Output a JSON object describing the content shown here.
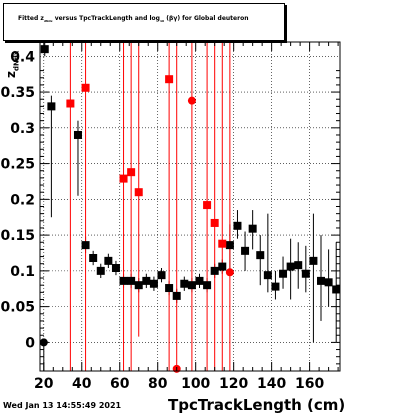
{
  "title": {
    "prefix": "Fitted z",
    "z_sub": "dNdx",
    "mid": "versus TpcTrackLength and log",
    "log_sub": "10",
    "suffix": "(βγ) for Global deuteron"
  },
  "date_stamp": "Wed Jan 13 14:55:49 2021",
  "chart_data": {
    "type": "scatter",
    "xlabel": "TpcTrackLength (cm)",
    "ylabel": "z",
    "ylabel_sub": "dNdx",
    "xlim": [
      18,
      176
    ],
    "ylim": [
      -0.04,
      0.42
    ],
    "xticks": [
      20,
      40,
      60,
      80,
      100,
      120,
      140,
      160
    ],
    "yticks": [
      0,
      0.05,
      0.1,
      0.15,
      0.2,
      0.25,
      0.3,
      0.35,
      0.4
    ],
    "ytick_labels": [
      "0",
      "0.05",
      "0.1",
      "0.15",
      "0.2",
      "0.25",
      "0.3",
      "0.35",
      "0.4"
    ],
    "colors": {
      "black_series": "#000000",
      "red_series": "#ff0000",
      "frame": "#000000"
    },
    "series": [
      {
        "color": "black",
        "marker": "square",
        "points": [
          {
            "x": 20.5,
            "y": 0.41,
            "lo": 0.4,
            "hi": 0.42
          },
          {
            "x": 24,
            "y": 0.33,
            "lo": 0.175,
            "hi": 0.345
          },
          {
            "x": 38,
            "y": 0.29,
            "lo": 0.205,
            "hi": 0.31
          },
          {
            "x": 42,
            "y": 0.136,
            "lo": 0.125,
            "hi": 0.148
          },
          {
            "x": 46,
            "y": 0.118,
            "lo": 0.108,
            "hi": 0.128
          },
          {
            "x": 50,
            "y": 0.1,
            "lo": 0.09,
            "hi": 0.11
          },
          {
            "x": 54,
            "y": 0.114,
            "lo": 0.104,
            "hi": 0.124
          },
          {
            "x": 58,
            "y": 0.104,
            "lo": 0.094,
            "hi": 0.114
          },
          {
            "x": 62,
            "y": 0.086,
            "lo": 0.076,
            "hi": 0.096
          },
          {
            "x": 66,
            "y": 0.086,
            "lo": 0.076,
            "hi": 0.096
          },
          {
            "x": 70,
            "y": 0.08,
            "lo": 0.07,
            "hi": 0.09
          },
          {
            "x": 74,
            "y": 0.086,
            "lo": 0.076,
            "hi": 0.096
          },
          {
            "x": 78,
            "y": 0.082,
            "lo": 0.072,
            "hi": 0.092
          },
          {
            "x": 82,
            "y": 0.094,
            "lo": 0.084,
            "hi": 0.104
          },
          {
            "x": 86,
            "y": 0.076,
            "lo": 0.066,
            "hi": 0.086
          },
          {
            "x": 90,
            "y": 0.065,
            "lo": 0.055,
            "hi": 0.075
          },
          {
            "x": 94,
            "y": 0.082,
            "lo": 0.072,
            "hi": 0.092
          },
          {
            "x": 98,
            "y": 0.08,
            "lo": 0.07,
            "hi": 0.09
          },
          {
            "x": 102,
            "y": 0.086,
            "lo": 0.076,
            "hi": 0.096
          },
          {
            "x": 106,
            "y": 0.08,
            "lo": 0.07,
            "hi": 0.09
          },
          {
            "x": 110,
            "y": 0.1,
            "lo": 0.09,
            "hi": 0.11
          },
          {
            "x": 114,
            "y": 0.106,
            "lo": 0.096,
            "hi": 0.116
          },
          {
            "x": 118,
            "y": 0.136,
            "lo": 0.1,
            "hi": 0.165
          },
          {
            "x": 122,
            "y": 0.163,
            "lo": 0.145,
            "hi": 0.185
          },
          {
            "x": 126,
            "y": 0.128,
            "lo": 0.1,
            "hi": 0.155
          },
          {
            "x": 130,
            "y": 0.159,
            "lo": 0.13,
            "hi": 0.185
          },
          {
            "x": 134,
            "y": 0.122,
            "lo": 0.08,
            "hi": 0.15
          },
          {
            "x": 138,
            "y": 0.094,
            "lo": 0.07,
            "hi": 0.18
          },
          {
            "x": 142,
            "y": 0.078,
            "lo": 0.06,
            "hi": 0.1
          },
          {
            "x": 146,
            "y": 0.096,
            "lo": 0.075,
            "hi": 0.12
          },
          {
            "x": 150,
            "y": 0.106,
            "lo": 0.06,
            "hi": 0.145
          },
          {
            "x": 154,
            "y": 0.108,
            "lo": 0.075,
            "hi": 0.14
          },
          {
            "x": 158,
            "y": 0.096,
            "lo": 0.07,
            "hi": 0.135
          },
          {
            "x": 162,
            "y": 0.114,
            "lo": 0.0,
            "hi": 0.18
          },
          {
            "x": 166,
            "y": 0.086,
            "lo": 0.03,
            "hi": 0.15
          },
          {
            "x": 170,
            "y": 0.084,
            "lo": 0.05,
            "hi": 0.13
          },
          {
            "x": 174,
            "y": 0.074,
            "lo": 0.0,
            "hi": 0.14
          },
          {
            "x": 20,
            "y": 0.0,
            "lo": -0.04,
            "hi": 0.0,
            "marker": "circle"
          }
        ]
      },
      {
        "color": "red",
        "marker": "square",
        "points": [
          {
            "x": 34,
            "y": 0.334,
            "lo": -0.04,
            "hi": 0.42
          },
          {
            "x": 42,
            "y": 0.356,
            "lo": -0.04,
            "hi": 0.42
          },
          {
            "x": 62,
            "y": 0.229,
            "lo": -0.04,
            "hi": 0.42
          },
          {
            "x": 66,
            "y": 0.238,
            "lo": -0.04,
            "hi": 0.42
          },
          {
            "x": 70,
            "y": 0.21,
            "lo": 0.008,
            "hi": 0.42
          },
          {
            "x": 86,
            "y": 0.368,
            "lo": -0.04,
            "hi": 0.42
          },
          {
            "x": 106,
            "y": 0.192,
            "lo": -0.04,
            "hi": 0.42
          },
          {
            "x": 110,
            "y": 0.167,
            "lo": -0.04,
            "hi": 0.42
          },
          {
            "x": 114,
            "y": 0.138,
            "lo": -0.04,
            "hi": 0.42
          },
          {
            "x": 98,
            "y": 0.338,
            "lo": -0.04,
            "hi": 0.42,
            "marker": "circle"
          },
          {
            "x": 118,
            "y": 0.098,
            "lo": -0.04,
            "hi": 0.42,
            "marker": "circle"
          },
          {
            "x": 90,
            "y": -0.037,
            "lo": -0.04,
            "hi": 0.42,
            "marker": "circle"
          }
        ]
      }
    ]
  }
}
